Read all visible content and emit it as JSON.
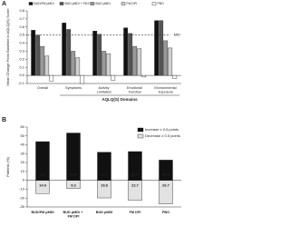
{
  "chart_data": [
    {
      "type": "bar",
      "panel_label": "A",
      "ylabel": "Mean Change From Baseline in AQLQ(S) Score",
      "xlabel": "AQLQ(S) Domains",
      "categories": [
        "Overall",
        "Symptoms",
        "Activity Limitation",
        "Emotional Function",
        "Environmental Exposure"
      ],
      "series": [
        {
          "name": "BUD/FM pMDI",
          "color": "#111111",
          "values": [
            0.56,
            0.65,
            0.55,
            0.59,
            0.68
          ]
        },
        {
          "name": "BUD pMDI + FM DPI",
          "color": "#555555",
          "values": [
            0.5,
            0.57,
            0.51,
            0.52,
            0.68
          ]
        },
        {
          "name": "BUD pMDI",
          "color": "#999999",
          "values": [
            0.36,
            0.3,
            0.3,
            0.36,
            0.43
          ]
        },
        {
          "name": "FM DPI",
          "color": "#d0d0d0",
          "values": [
            0.24,
            0.22,
            0.27,
            0.33,
            0.34
          ]
        },
        {
          "name": "PBO",
          "color": "#ffffff",
          "values": [
            -0.07,
            -0.1,
            -0.06,
            -0.02,
            -0.04
          ]
        }
      ],
      "ylim": [
        -0.1,
        0.8
      ],
      "yticks": [
        -0.1,
        {
          "value": 0,
          "label": "0.0"
        },
        0.1,
        0.2,
        0.3,
        0.4,
        0.5,
        0.6,
        0.7,
        0.8
      ],
      "reference_line": {
        "value": 0.5,
        "label": "MID"
      }
    },
    {
      "type": "bar",
      "panel_label": "B",
      "ylabel": "Patients (%)",
      "categories": [
        "BUD/FM pMDI",
        "BUD pMDI + FM DPI",
        "BUD pMDI",
        "FM DPI",
        "PBO"
      ],
      "series": [
        {
          "name": "Decrease ≥ 0.5 points",
          "color": "#e2e2e2",
          "direction": "down",
          "values": [
            14.9,
            9.3,
            19.8,
            22.7,
            26.7
          ]
        },
        {
          "name": "Increase ≥ 0.5 points",
          "color": "#111111",
          "direction": "up",
          "values": [
            43.6,
            53.3,
            31.7,
            32.4,
            22.8
          ]
        }
      ],
      "ylim": [
        -30,
        60
      ],
      "yticks": [
        -30,
        -20,
        -10,
        0,
        10,
        20,
        30,
        40,
        50,
        60
      ]
    }
  ]
}
